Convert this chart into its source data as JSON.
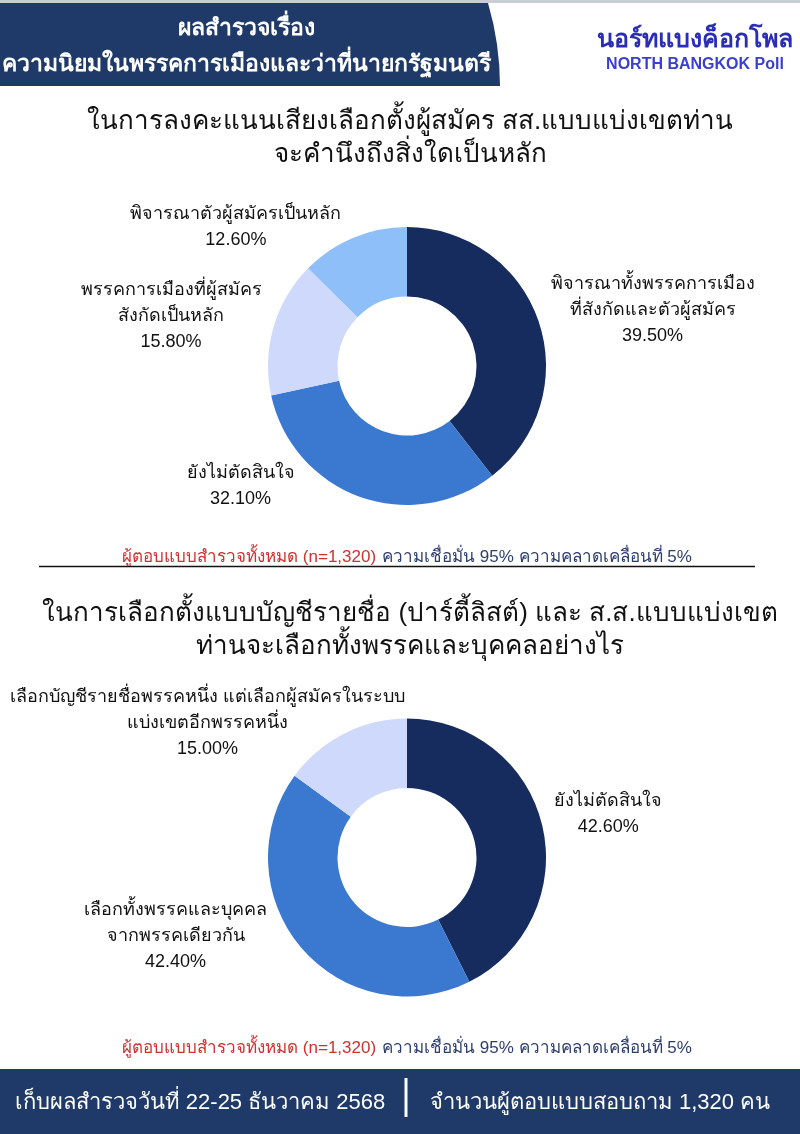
{
  "chart_data": [
    {
      "type": "other",
      "title": "ผลสำรวจเรื่อง\nความนิยมในพรรคการเมืองและว่าที่นายกรัฐมนตรี",
      "annotations": [
        "นอร์ทแบงค็อกโพล",
        "NORTH BANGKOK Poll"
      ]
    },
    {
      "type": "donut",
      "title": "ในการลงคะแนนเสียงเลือกตั้งผู้สมัคร สส.แบบแบ่งเขตท่าน\nจะคำนึงถึงสิ่งใดเป็นหลัก",
      "categories": [
        "พิจารณาทั้งพรรคการเมือง\nที่สังกัดและตัวผู้สมัคร",
        "ยังไม่ตัดสินใจ",
        "พรรคการเมืองที่ผู้สมัคร\nสังกัดเป็นหลัก",
        "พิจารณาตัวผู้สมัครเป็นหลัก"
      ],
      "values": [
        39.5,
        32.1,
        15.8,
        12.6
      ],
      "value_labels": [
        "39.50%",
        "32.10%",
        "15.80%",
        "12.60%"
      ],
      "colors": [
        "#172c5e",
        "#3b79d1",
        "#cfd9fb",
        "#8fbff8"
      ],
      "annotations": [
        "ผู้ตอบแบบสำรวจทั้งหมด (n=1,320)",
        "ความเชื่อมั่น 95% ความคลาดเคลื่อนที่ 5%"
      ]
    },
    {
      "type": "donut",
      "title": "ในการเลือกตั้งแบบบัญชีรายชื่อ (ปาร์ตี้ลิสต์) และ ส.ส.แบบแบ่งเขต\nท่านจะเลือกทั้งพรรคและบุคคลอย่างไร",
      "categories": [
        "ยังไม่ตัดสินใจ",
        "เลือกทั้งพรรคและบุคคล\nจากพรรคเดียวกัน",
        "เลือกบัญชีรายชื่อพรรคหนึ่ง แต่เลือกผู้สมัครในระบบ\nแบ่งเขตอีกพรรคหนึ่ง"
      ],
      "values": [
        42.6,
        42.4,
        15.0
      ],
      "value_labels": [
        "42.60%",
        "42.40%",
        "15.00%"
      ],
      "colors": [
        "#172c5e",
        "#3b79d1",
        "#cfd9fb"
      ],
      "annotations": [
        "ผู้ตอบแบบสำรวจทั้งหมด (n=1,320)",
        "ความเชื่อมั่น 95% ความคลาดเคลื่อนที่ 5%"
      ]
    },
    {
      "type": "other",
      "annotations": [
        "เก็บผลสำรวจวันที่ 22-25 ธันวาคม 2568",
        "จำนวนผู้ตอบแบบสอบถาม 1,320 คน"
      ]
    }
  ]
}
